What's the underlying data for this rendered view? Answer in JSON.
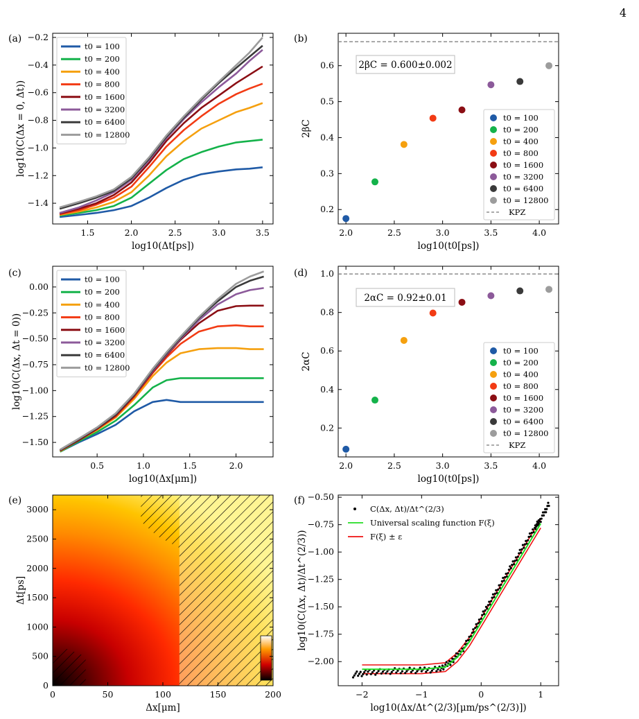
{
  "page_number": "4",
  "chart_data": [
    {
      "id": "a",
      "panel_label": "(a)",
      "type": "line",
      "xlabel": "log10(Δt[ps])",
      "ylabel": "log10(C(Δx = 0, Δt))",
      "xlim": [
        1.1,
        3.62
      ],
      "ylim": [
        -1.55,
        -0.17
      ],
      "xticks": [
        "1.5",
        "2.0",
        "2.5",
        "3.0",
        "3.5"
      ],
      "yticks": [
        "−1.4",
        "−1.2",
        "−1.0",
        "−0.8",
        "−0.6",
        "−0.4",
        "−0.2"
      ],
      "legend_position": "top-left",
      "x": [
        1.18,
        1.4,
        1.6,
        1.8,
        2.0,
        2.2,
        2.4,
        2.6,
        2.8,
        3.0,
        3.2,
        3.35,
        3.5
      ],
      "series": [
        {
          "name": "t0 = 100",
          "color": "#1f5aa6",
          "values": [
            -1.5,
            -1.485,
            -1.47,
            -1.45,
            -1.42,
            -1.36,
            -1.29,
            -1.23,
            -1.19,
            -1.17,
            -1.155,
            -1.15,
            -1.14
          ]
        },
        {
          "name": "t0 = 200",
          "color": "#14b24a",
          "values": [
            -1.49,
            -1.47,
            -1.45,
            -1.42,
            -1.36,
            -1.26,
            -1.16,
            -1.08,
            -1.03,
            -0.99,
            -0.96,
            -0.95,
            -0.94
          ]
        },
        {
          "name": "t0 = 400",
          "color": "#f5a00f",
          "values": [
            -1.485,
            -1.46,
            -1.43,
            -1.39,
            -1.32,
            -1.2,
            -1.06,
            -0.95,
            -0.86,
            -0.8,
            -0.74,
            -0.71,
            -0.675
          ]
        },
        {
          "name": "t0 = 800",
          "color": "#f23b14",
          "values": [
            -1.48,
            -1.45,
            -1.41,
            -1.36,
            -1.28,
            -1.14,
            -0.99,
            -0.87,
            -0.77,
            -0.68,
            -0.61,
            -0.57,
            -0.535
          ]
        },
        {
          "name": "t0 = 1600",
          "color": "#8b0e14",
          "values": [
            -1.475,
            -1.44,
            -1.4,
            -1.34,
            -1.25,
            -1.11,
            -0.95,
            -0.82,
            -0.71,
            -0.62,
            -0.53,
            -0.47,
            -0.41
          ]
        },
        {
          "name": "t0 = 3200",
          "color": "#8c5a9a",
          "values": [
            -1.47,
            -1.43,
            -1.38,
            -1.32,
            -1.23,
            -1.09,
            -0.93,
            -0.79,
            -0.67,
            -0.56,
            -0.46,
            -0.37,
            -0.29
          ]
        },
        {
          "name": "t0 = 6400",
          "color": "#3a3a3a",
          "values": [
            -1.44,
            -1.4,
            -1.36,
            -1.31,
            -1.22,
            -1.08,
            -0.92,
            -0.78,
            -0.65,
            -0.53,
            -0.42,
            -0.34,
            -0.26
          ]
        },
        {
          "name": "t0 = 12800",
          "color": "#9c9c9c",
          "values": [
            -1.43,
            -1.39,
            -1.35,
            -1.3,
            -1.21,
            -1.07,
            -0.91,
            -0.77,
            -0.64,
            -0.52,
            -0.4,
            -0.31,
            -0.2
          ]
        }
      ]
    },
    {
      "id": "b",
      "panel_label": "(b)",
      "type": "scatter",
      "xlabel": "log10(t0[ps])",
      "ylabel": "2βC",
      "xlim": [
        1.92,
        4.2
      ],
      "ylim": [
        0.16,
        0.69
      ],
      "xticks": [
        "2.0",
        "2.5",
        "3.0",
        "3.5",
        "4.0"
      ],
      "yticks": [
        "0.2",
        "0.3",
        "0.4",
        "0.5",
        "0.6"
      ],
      "annotation": "2βC = 0.600±0.002",
      "kpz_label": "KPZ",
      "kpz_value": 0.6667,
      "legend_position": "lower-right",
      "points": [
        {
          "name": "t0 = 100",
          "color": "#1f5aa6",
          "x": 2.0,
          "y": 0.175
        },
        {
          "name": "t0 = 200",
          "color": "#14b24a",
          "x": 2.3,
          "y": 0.277
        },
        {
          "name": "t0 = 400",
          "color": "#f5a00f",
          "x": 2.6,
          "y": 0.381
        },
        {
          "name": "t0 = 800",
          "color": "#f23b14",
          "x": 2.9,
          "y": 0.454
        },
        {
          "name": "t0 = 1600",
          "color": "#8b0e14",
          "x": 3.2,
          "y": 0.477
        },
        {
          "name": "t0 = 3200",
          "color": "#8c5a9a",
          "x": 3.5,
          "y": 0.547
        },
        {
          "name": "t0 = 6400",
          "color": "#3a3a3a",
          "x": 3.8,
          "y": 0.556
        },
        {
          "name": "t0 = 12800",
          "color": "#9c9c9c",
          "x": 4.1,
          "y": 0.6
        }
      ]
    },
    {
      "id": "c",
      "panel_label": "(c)",
      "type": "line",
      "xlabel": "log10(Δx[μm])",
      "ylabel": "log10(C(Δx, Δt = 0))",
      "xlim": [
        0.02,
        2.4
      ],
      "ylim": [
        -1.64,
        0.2
      ],
      "xticks": [
        "0.5",
        "1.0",
        "1.5",
        "2.0"
      ],
      "yticks": [
        "−1.50",
        "−1.25",
        "−1.00",
        "−0.75",
        "−0.50",
        "−0.25",
        "0.00"
      ],
      "legend_position": "top-left",
      "x": [
        0.1,
        0.3,
        0.5,
        0.7,
        0.9,
        1.1,
        1.25,
        1.4,
        1.6,
        1.8,
        2.0,
        2.15,
        2.3
      ],
      "series": [
        {
          "name": "t0 = 100",
          "color": "#1f5aa6",
          "values": [
            -1.59,
            -1.5,
            -1.42,
            -1.33,
            -1.2,
            -1.11,
            -1.09,
            -1.11,
            -1.11,
            -1.11,
            -1.11,
            -1.11,
            -1.11
          ]
        },
        {
          "name": "t0 = 200",
          "color": "#14b24a",
          "values": [
            -1.59,
            -1.49,
            -1.4,
            -1.29,
            -1.14,
            -0.97,
            -0.9,
            -0.88,
            -0.88,
            -0.88,
            -0.88,
            -0.88,
            -0.88
          ]
        },
        {
          "name": "t0 = 400",
          "color": "#f5a00f",
          "values": [
            -1.585,
            -1.48,
            -1.38,
            -1.26,
            -1.08,
            -0.86,
            -0.73,
            -0.64,
            -0.6,
            -0.59,
            -0.59,
            -0.6,
            -0.6
          ]
        },
        {
          "name": "t0 = 800",
          "color": "#f23b14",
          "values": [
            -1.58,
            -1.48,
            -1.37,
            -1.25,
            -1.06,
            -0.83,
            -0.68,
            -0.55,
            -0.43,
            -0.38,
            -0.37,
            -0.38,
            -0.38
          ]
        },
        {
          "name": "t0 = 1600",
          "color": "#8b0e14",
          "values": [
            -1.58,
            -1.48,
            -1.37,
            -1.24,
            -1.05,
            -0.82,
            -0.66,
            -0.51,
            -0.35,
            -0.23,
            -0.185,
            -0.18,
            -0.18
          ]
        },
        {
          "name": "t0 = 3200",
          "color": "#8c5a9a",
          "values": [
            -1.575,
            -1.47,
            -1.36,
            -1.23,
            -1.04,
            -0.81,
            -0.65,
            -0.5,
            -0.32,
            -0.17,
            -0.07,
            -0.03,
            -0.01
          ]
        },
        {
          "name": "t0 = 6400",
          "color": "#3a3a3a",
          "values": [
            -1.575,
            -1.47,
            -1.36,
            -1.23,
            -1.04,
            -0.8,
            -0.64,
            -0.49,
            -0.3,
            -0.14,
            0.0,
            0.06,
            0.1
          ]
        },
        {
          "name": "t0 = 12800",
          "color": "#9c9c9c",
          "values": [
            -1.57,
            -1.465,
            -1.355,
            -1.22,
            -1.03,
            -0.79,
            -0.63,
            -0.48,
            -0.29,
            -0.12,
            0.03,
            0.1,
            0.15
          ]
        }
      ]
    },
    {
      "id": "d",
      "panel_label": "(d)",
      "type": "scatter",
      "xlabel": "log10(t0[ps])",
      "ylabel": "2αC",
      "xlim": [
        1.92,
        4.2
      ],
      "ylim": [
        0.05,
        1.04
      ],
      "xticks": [
        "2.0",
        "2.5",
        "3.0",
        "3.5",
        "4.0"
      ],
      "yticks": [
        "0.2",
        "0.4",
        "0.6",
        "0.8",
        "1.0"
      ],
      "annotation": "2αC = 0.92±0.01",
      "kpz_label": "KPZ",
      "kpz_value": 1.0,
      "legend_position": "lower-right",
      "points": [
        {
          "name": "t0 = 100",
          "color": "#1f5aa6",
          "x": 2.0,
          "y": 0.09
        },
        {
          "name": "t0 = 200",
          "color": "#14b24a",
          "x": 2.3,
          "y": 0.345
        },
        {
          "name": "t0 = 400",
          "color": "#f5a00f",
          "x": 2.6,
          "y": 0.655
        },
        {
          "name": "t0 = 800",
          "color": "#f23b14",
          "x": 2.9,
          "y": 0.797
        },
        {
          "name": "t0 = 1600",
          "color": "#8b0e14",
          "x": 3.2,
          "y": 0.853
        },
        {
          "name": "t0 = 3200",
          "color": "#8c5a9a",
          "x": 3.5,
          "y": 0.887
        },
        {
          "name": "t0 = 6400",
          "color": "#3a3a3a",
          "x": 3.8,
          "y": 0.912
        },
        {
          "name": "t0 = 12800",
          "color": "#9c9c9c",
          "x": 4.1,
          "y": 0.92
        }
      ]
    },
    {
      "id": "e",
      "panel_label": "(e)",
      "type": "heatmap",
      "xlabel": "Δx[μm]",
      "ylabel": "Δt[ps]",
      "xlim": [
        0,
        200
      ],
      "ylim": [
        0,
        3250
      ],
      "xticks": [
        "0",
        "50",
        "100",
        "150",
        "200"
      ],
      "yticks": [
        "0",
        "500",
        "1000",
        "1500",
        "2000",
        "2500",
        "3000"
      ],
      "colormap": "hot",
      "colorbar": true,
      "hatched_regions": [
        "lower-left corner (Δx < 30, Δt < 650)",
        "right side (Δx > 115; Δx > 80 above Δt ≈ 2500)"
      ]
    },
    {
      "id": "f",
      "panel_label": "(f)",
      "type": "scatter",
      "xlabel": "log10(Δx/Δt^(2/3)[μm/ps^(2/3)])",
      "ylabel": "log10(C(Δx, Δt)/Δt^(2/3))",
      "xlim": [
        -2.4,
        1.3
      ],
      "ylim": [
        -2.22,
        -0.48
      ],
      "xticks": [
        "−2",
        "−1",
        "0",
        "1"
      ],
      "yticks": [
        "−2.00",
        "−1.75",
        "−1.50",
        "−1.25",
        "−1.00",
        "−0.75",
        "−0.50"
      ],
      "legend_position": "top-left",
      "legend": [
        {
          "label": "C(Δx, Δt)/Δt^(2/3)",
          "kind": "dots",
          "color": "#000000"
        },
        {
          "label": "Universal scaling function F(ξ)",
          "kind": "line",
          "color": "#22dd22"
        },
        {
          "label": "F(ξ) ± ε",
          "kind": "line",
          "color": "#ee1111"
        }
      ],
      "data_x": [
        -2.15,
        -1.9,
        -1.6,
        -1.3,
        -1.0,
        -0.7,
        -0.5,
        -0.3,
        -0.1,
        0.1,
        0.3,
        0.5,
        0.7,
        0.9,
        1.0,
        1.15
      ],
      "data_y": [
        -2.12,
        -2.1,
        -2.09,
        -2.08,
        -2.08,
        -2.07,
        -2.0,
        -1.88,
        -1.7,
        -1.5,
        -1.32,
        -1.14,
        -0.96,
        -0.78,
        -0.7,
        -0.55
      ],
      "fit_x": [
        -2.0,
        -1.0,
        -0.6,
        -0.4,
        -0.2,
        0.0,
        0.5,
        1.0
      ],
      "fit_y": [
        -2.07,
        -2.07,
        -2.05,
        -1.96,
        -1.82,
        -1.64,
        -1.19,
        -0.74
      ],
      "band_epsilon": 0.04
    }
  ]
}
